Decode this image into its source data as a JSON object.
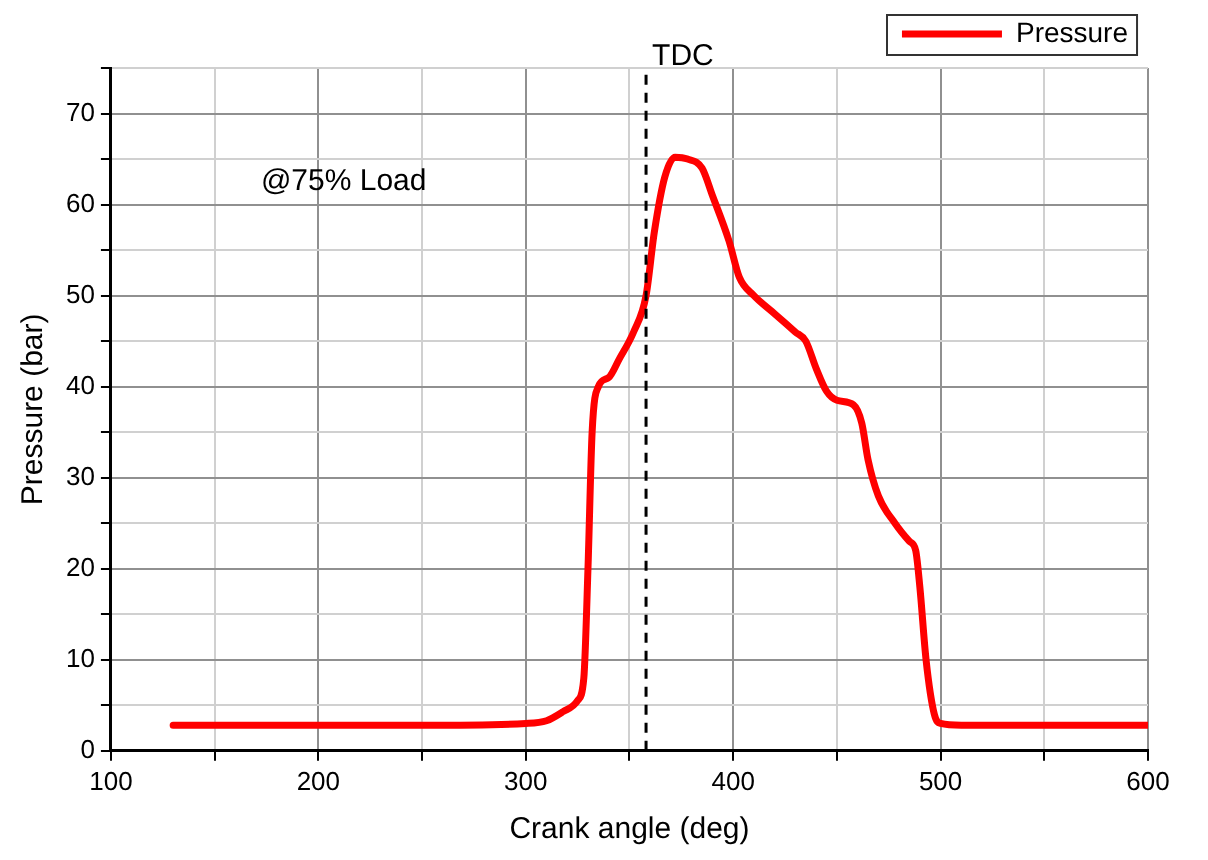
{
  "chart_data": {
    "type": "line",
    "xlabel": "Crank angle (deg)",
    "ylabel": "Pressure (bar)",
    "xlim": [
      100,
      600
    ],
    "xticks": [
      100,
      {
        "value": 150,
        "label": null
      },
      200,
      {
        "value": 250,
        "label": null
      },
      300,
      {
        "value": 350,
        "label": null
      },
      400,
      {
        "value": 450,
        "label": null
      },
      500,
      {
        "value": 550,
        "label": null
      },
      600
    ],
    "ylim": [
      0,
      75
    ],
    "yticks": [
      0,
      {
        "value": 5,
        "label": null
      },
      10,
      {
        "value": 15,
        "label": null
      },
      20,
      {
        "value": 25,
        "label": null
      },
      30,
      {
        "value": 35,
        "label": null
      },
      40,
      {
        "value": 45,
        "label": null
      },
      50,
      {
        "value": 55,
        "label": null
      },
      60,
      {
        "value": 65,
        "label": null
      },
      70,
      {
        "value": 75,
        "label": null
      }
    ],
    "grid": true,
    "legend": "top right",
    "marker": "none",
    "line_style": "solid",
    "annotations": [
      "@75% Load"
    ],
    "ref_lines": [
      {
        "axis": "x",
        "value": 358,
        "label": "TDC",
        "color": "#000000",
        "line_style": "dashed"
      }
    ],
    "series": [
      {
        "name": "Pressure",
        "color": "#ff0000",
        "x": [
          130,
          200,
          250,
          300,
          310,
          318,
          325,
          328,
          330,
          332,
          335,
          340,
          345,
          352,
          358,
          362,
          367,
          372,
          378,
          385,
          390,
          398,
          403,
          410,
          420,
          430,
          435,
          440,
          445,
          450,
          458,
          462,
          465,
          470,
          478,
          485,
          488,
          490,
          493,
          497,
          500,
          510,
          600
        ],
        "values": [
          2.8,
          2.8,
          2.8,
          3.0,
          3.3,
          4.3,
          5.5,
          8,
          20,
          35,
          40,
          41,
          43,
          46,
          50,
          57,
          63,
          65.2,
          65,
          64,
          61,
          56,
          52,
          50,
          48,
          46,
          45,
          42,
          39.5,
          38.5,
          38,
          36,
          32,
          28,
          25,
          23,
          22,
          18,
          10,
          4,
          3,
          2.8,
          2.8
        ]
      }
    ]
  }
}
